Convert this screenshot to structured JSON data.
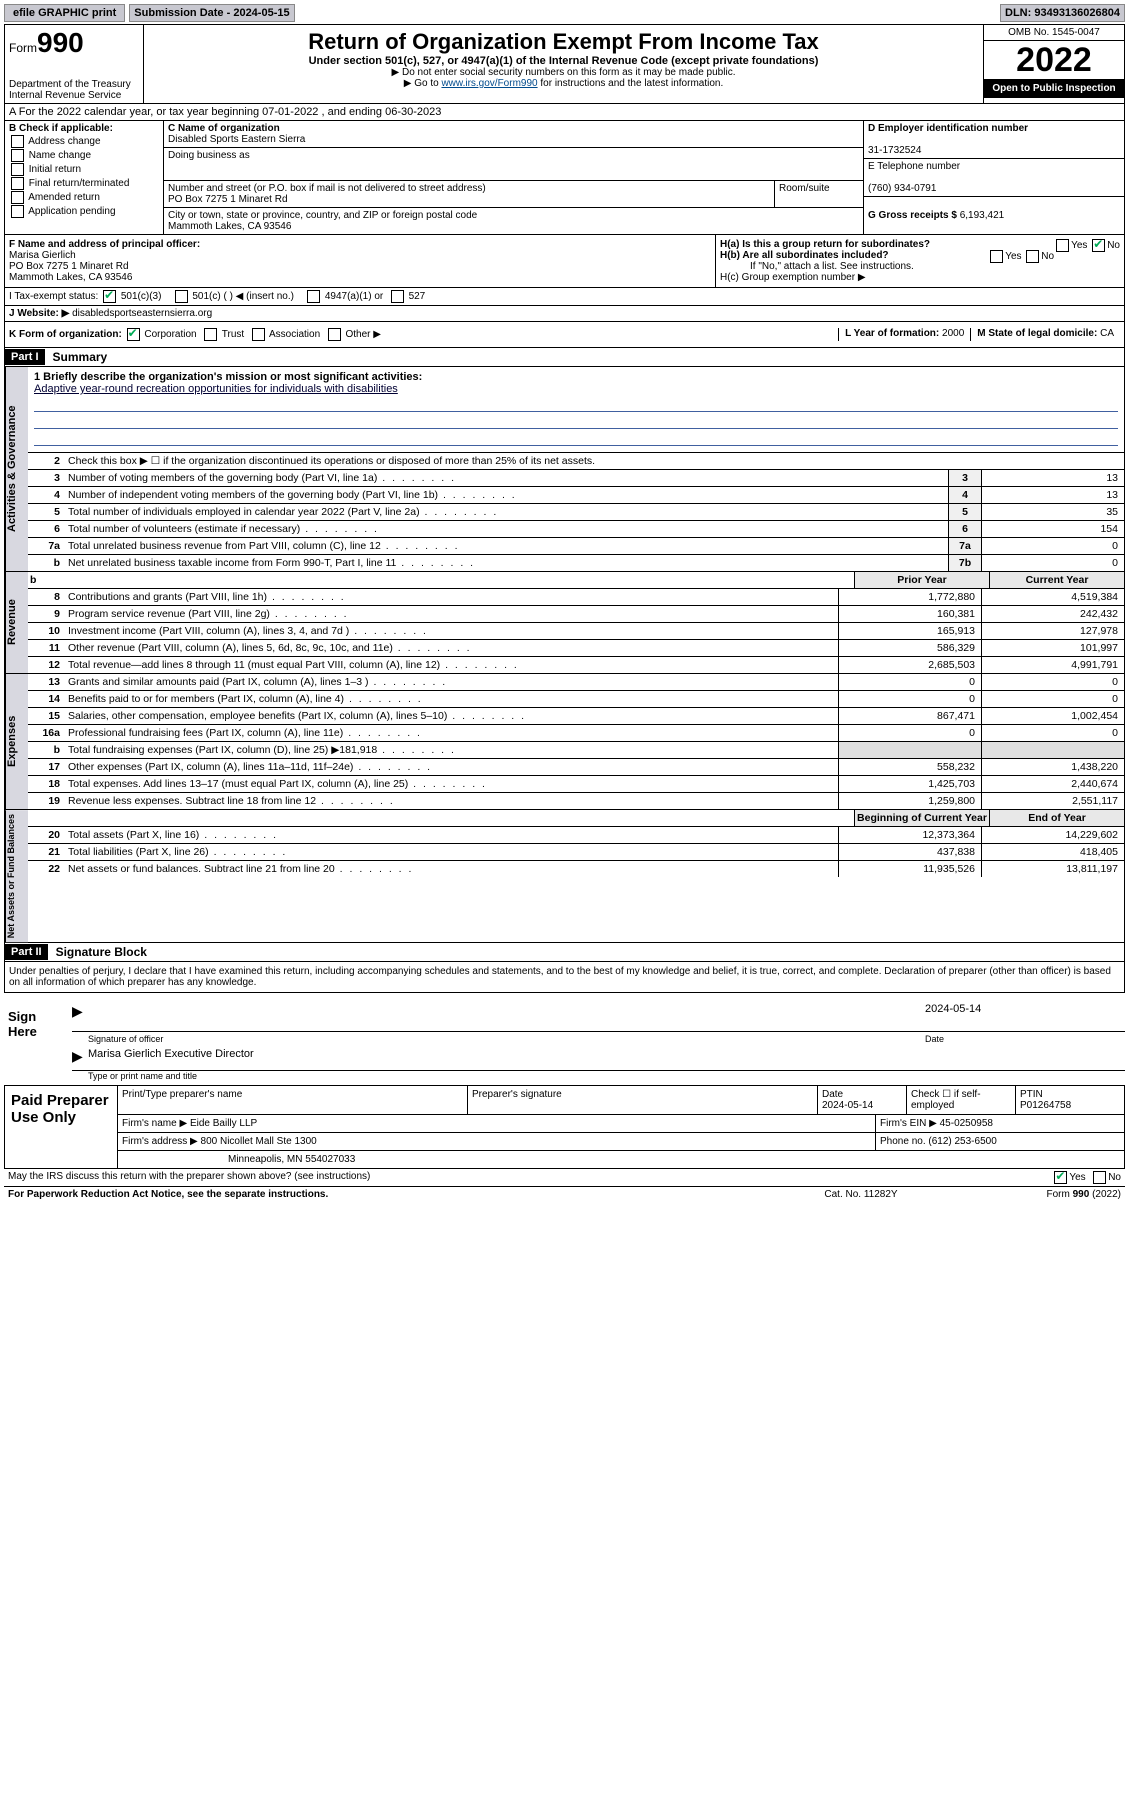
{
  "top": {
    "efile": "efile GRAPHIC print",
    "sub_label": "Submission Date - ",
    "sub_date": "2024-05-15",
    "dln_label": "DLN: ",
    "dln": "93493136026804"
  },
  "header": {
    "form_prefix": "Form",
    "form_num": "990",
    "dept": "Department of the Treasury\nInternal Revenue Service",
    "title": "Return of Organization Exempt From Income Tax",
    "sub": "Under section 501(c), 527, or 4947(a)(1) of the Internal Revenue Code (except private foundations)",
    "note1": "▶ Do not enter social security numbers on this form as it may be made public.",
    "note2_a": "▶ Go to ",
    "note2_link": "www.irs.gov/Form990",
    "note2_b": " for instructions and the latest information.",
    "omb": "OMB No. 1545-0047",
    "year": "2022",
    "open": "Open to Public Inspection"
  },
  "line_a": "A For the 2022 calendar year, or tax year beginning 07-01-2022   , and ending 06-30-2023",
  "b": {
    "label": "B Check if applicable:",
    "opts": [
      "Address change",
      "Name change",
      "Initial return",
      "Final return/terminated",
      "Amended return",
      "Application pending"
    ]
  },
  "c": {
    "name_label": "C Name of organization",
    "name": "Disabled Sports Eastern Sierra",
    "dba_label": "Doing business as",
    "dba": "",
    "addr_label": "Number and street (or P.O. box if mail is not delivered to street address)",
    "room_label": "Room/suite",
    "addr": "PO Box 7275 1 Minaret Rd",
    "city_label": "City or town, state or province, country, and ZIP or foreign postal code",
    "city": "Mammoth Lakes, CA  93546"
  },
  "d": {
    "label": "D Employer identification number",
    "val": "31-1732524"
  },
  "e": {
    "label": "E Telephone number",
    "val": "(760) 934-0791"
  },
  "g": {
    "label": "G Gross receipts $ ",
    "val": "6,193,421"
  },
  "f": {
    "label": "F Name and address of principal officer:",
    "name": "Marisa Gierlich",
    "addr1": "PO Box 7275 1 Minaret Rd",
    "addr2": "Mammoth Lakes, CA  93546"
  },
  "h": {
    "a": "H(a)  Is this a group return for subordinates?",
    "a_yes": "Yes",
    "a_no": "No",
    "b": "H(b)  Are all subordinates included?",
    "b_note": "If \"No,\" attach a list. See instructions.",
    "c": "H(c)  Group exemption number ▶"
  },
  "i": {
    "label": "I    Tax-exempt status:",
    "o1": "501(c)(3)",
    "o2": "501(c) (  ) ◀ (insert no.)",
    "o3": "4947(a)(1) or",
    "o4": "527"
  },
  "j": {
    "label": "J    Website: ▶ ",
    "val": "disabledsportseasternsierra.org"
  },
  "k": {
    "label": "K Form of organization:",
    "o1": "Corporation",
    "o2": "Trust",
    "o3": "Association",
    "o4": "Other ▶",
    "l_label": "L Year of formation: ",
    "l_val": "2000",
    "m_label": "M State of legal domicile: ",
    "m_val": "CA"
  },
  "part1": {
    "head": "Part I",
    "title": "Summary"
  },
  "mission": {
    "prompt": "1  Briefly describe the organization's mission or most significant activities:",
    "text": "Adaptive year-round recreation opportunities for individuals with disabilities"
  },
  "gov": {
    "side": "Activities & Governance",
    "l2": "Check this box ▶ ☐  if the organization discontinued its operations or disposed of more than 25% of its net assets.",
    "rows": [
      {
        "n": "3",
        "d": "Number of voting members of the governing body (Part VI, line 1a)",
        "box": "3",
        "v": "13"
      },
      {
        "n": "4",
        "d": "Number of independent voting members of the governing body (Part VI, line 1b)",
        "box": "4",
        "v": "13"
      },
      {
        "n": "5",
        "d": "Total number of individuals employed in calendar year 2022 (Part V, line 2a)",
        "box": "5",
        "v": "35"
      },
      {
        "n": "6",
        "d": "Total number of volunteers (estimate if necessary)",
        "box": "6",
        "v": "154"
      },
      {
        "n": "7a",
        "d": "Total unrelated business revenue from Part VIII, column (C), line 12",
        "box": "7a",
        "v": "0"
      },
      {
        "n": "b",
        "d": "Net unrelated business taxable income from Form 990-T, Part I, line 11",
        "box": "7b",
        "v": "0"
      }
    ]
  },
  "cols": {
    "prior": "Prior Year",
    "current": "Current Year",
    "boy": "Beginning of Current Year",
    "eoy": "End of Year"
  },
  "rev": {
    "side": "Revenue",
    "rows": [
      {
        "n": "8",
        "d": "Contributions and grants (Part VIII, line 1h)",
        "p": "1,772,880",
        "c": "4,519,384"
      },
      {
        "n": "9",
        "d": "Program service revenue (Part VIII, line 2g)",
        "p": "160,381",
        "c": "242,432"
      },
      {
        "n": "10",
        "d": "Investment income (Part VIII, column (A), lines 3, 4, and 7d )",
        "p": "165,913",
        "c": "127,978"
      },
      {
        "n": "11",
        "d": "Other revenue (Part VIII, column (A), lines 5, 6d, 8c, 9c, 10c, and 11e)",
        "p": "586,329",
        "c": "101,997"
      },
      {
        "n": "12",
        "d": "Total revenue—add lines 8 through 11 (must equal Part VIII, column (A), line 12)",
        "p": "2,685,503",
        "c": "4,991,791"
      }
    ]
  },
  "exp": {
    "side": "Expenses",
    "rows": [
      {
        "n": "13",
        "d": "Grants and similar amounts paid (Part IX, column (A), lines 1–3 )",
        "p": "0",
        "c": "0"
      },
      {
        "n": "14",
        "d": "Benefits paid to or for members (Part IX, column (A), line 4)",
        "p": "0",
        "c": "0"
      },
      {
        "n": "15",
        "d": "Salaries, other compensation, employee benefits (Part IX, column (A), lines 5–10)",
        "p": "867,471",
        "c": "1,002,454"
      },
      {
        "n": "16a",
        "d": "Professional fundraising fees (Part IX, column (A), line 11e)",
        "p": "0",
        "c": "0"
      },
      {
        "n": "b",
        "d": "Total fundraising expenses (Part IX, column (D), line 25) ▶181,918",
        "p": "",
        "c": ""
      },
      {
        "n": "17",
        "d": "Other expenses (Part IX, column (A), lines 11a–11d, 11f–24e)",
        "p": "558,232",
        "c": "1,438,220"
      },
      {
        "n": "18",
        "d": "Total expenses. Add lines 13–17 (must equal Part IX, column (A), line 25)",
        "p": "1,425,703",
        "c": "2,440,674"
      },
      {
        "n": "19",
        "d": "Revenue less expenses. Subtract line 18 from line 12",
        "p": "1,259,800",
        "c": "2,551,117"
      }
    ]
  },
  "na": {
    "side": "Net Assets or Fund Balances",
    "rows": [
      {
        "n": "20",
        "d": "Total assets (Part X, line 16)",
        "p": "12,373,364",
        "c": "14,229,602"
      },
      {
        "n": "21",
        "d": "Total liabilities (Part X, line 26)",
        "p": "437,838",
        "c": "418,405"
      },
      {
        "n": "22",
        "d": "Net assets or fund balances. Subtract line 21 from line 20",
        "p": "11,935,526",
        "c": "13,811,197"
      }
    ]
  },
  "part2": {
    "head": "Part II",
    "title": "Signature Block",
    "decl": "Under penalties of perjury, I declare that I have examined this return, including accompanying schedules and statements, and to the best of my knowledge and belief, it is true, correct, and complete. Declaration of preparer (other than officer) is based on all information of which preparer has any knowledge."
  },
  "sign": {
    "here": "Sign Here",
    "sig_label": "Signature of officer",
    "date_label": "Date",
    "date": "2024-05-14",
    "name": "Marisa Gierlich  Executive Director",
    "name_label": "Type or print name and title"
  },
  "prep": {
    "left": "Paid Preparer Use Only",
    "h1": "Print/Type preparer's name",
    "h2": "Preparer's signature",
    "h3": "Date",
    "h3v": "2024-05-14",
    "h4": "Check ☐ if self-employed",
    "h5": "PTIN",
    "h5v": "P01264758",
    "firm_label": "Firm's name    ▶ ",
    "firm": "Eide Bailly LLP",
    "ein_label": "Firm's EIN ▶ ",
    "ein": "45-0250958",
    "addr_label": "Firm's address ▶ ",
    "addr1": "800 Nicollet Mall Ste 1300",
    "addr2": "Minneapolis, MN  554027033",
    "phone_label": "Phone no. ",
    "phone": "(612) 253-6500"
  },
  "footer": {
    "q": "May the IRS discuss this return with the preparer shown above? (see instructions)",
    "yes": "Yes",
    "no": "No",
    "pra": "For Paperwork Reduction Act Notice, see the separate instructions.",
    "cat": "Cat. No. 11282Y",
    "form": "Form 990 (2022)"
  }
}
